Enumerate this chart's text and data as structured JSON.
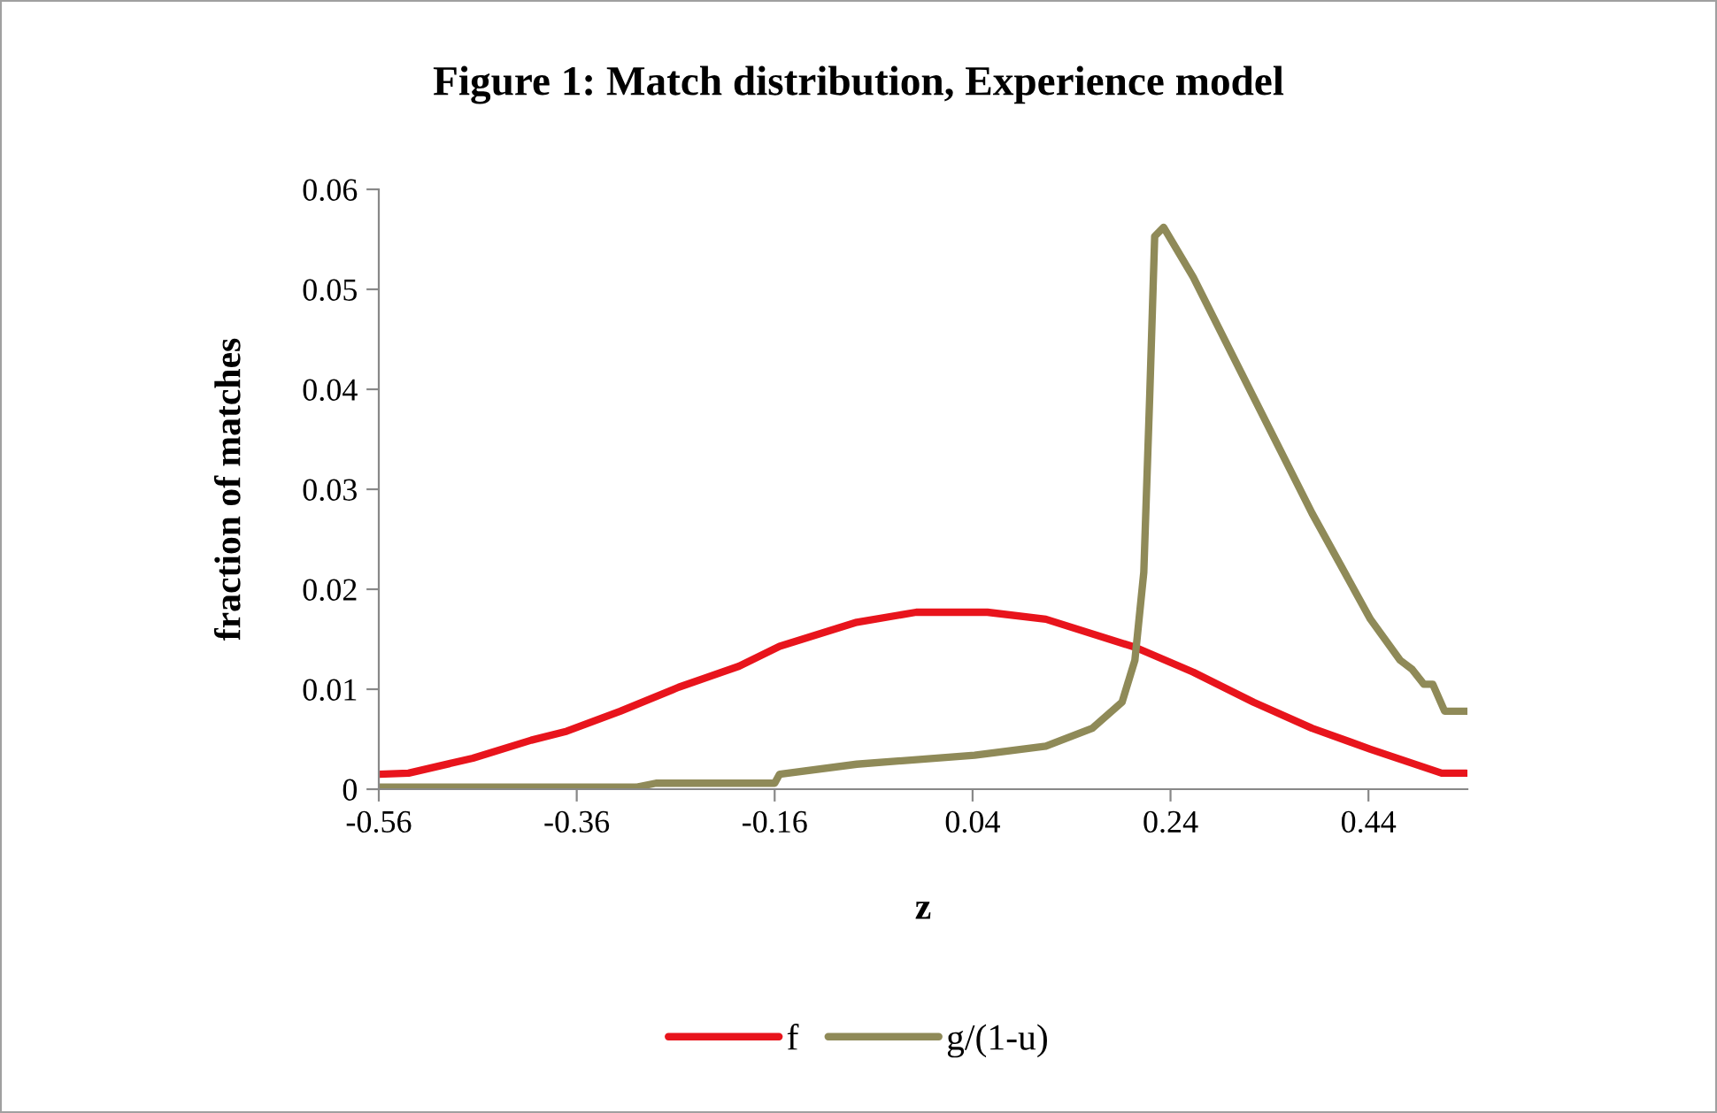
{
  "chart_data": {
    "type": "line",
    "title": "Figure 1: Match distribution, Experience model",
    "xlabel": "z",
    "ylabel": "fraction of matches",
    "series": [
      {
        "name": "f",
        "color": "#e8141c",
        "x": [
          -0.56,
          -0.53,
          -0.465,
          -0.406,
          -0.37,
          -0.316,
          -0.257,
          -0.196,
          -0.155,
          -0.077,
          -0.017,
          0.055,
          0.114,
          0.204,
          0.263,
          0.324,
          0.383,
          0.442,
          0.496,
          0.514,
          0.539
        ],
        "values": [
          0.0015,
          0.0016,
          0.0031,
          0.0049,
          0.0058,
          0.0078,
          0.0102,
          0.0123,
          0.0143,
          0.0167,
          0.0177,
          0.0177,
          0.017,
          0.0142,
          0.0117,
          0.0087,
          0.0061,
          0.004,
          0.0022,
          0.0016,
          0.0016
        ]
      },
      {
        "name": "g/(1-u)",
        "color": "#8f8a58",
        "x": [
          -0.56,
          -0.3,
          -0.28,
          -0.16,
          -0.155,
          -0.077,
          0.042,
          0.114,
          0.161,
          0.191,
          0.204,
          0.213,
          0.219,
          0.224,
          0.233,
          0.263,
          0.323,
          0.383,
          0.442,
          0.472,
          0.484,
          0.496,
          0.505,
          0.517,
          0.539
        ],
        "values": [
          0.0002,
          0.0002,
          0.0006,
          0.0006,
          0.0015,
          0.0025,
          0.0034,
          0.0043,
          0.0061,
          0.0087,
          0.0129,
          0.0217,
          0.0394,
          0.0553,
          0.0562,
          0.0512,
          0.0394,
          0.0276,
          0.017,
          0.0129,
          0.012,
          0.0105,
          0.0105,
          0.0078,
          0.0078
        ]
      }
    ],
    "xlim": [
      -0.56,
      0.54
    ],
    "xticks": [
      -0.56,
      -0.36,
      -0.16,
      0.04,
      0.24,
      0.44
    ],
    "ylim": [
      0,
      0.06
    ],
    "yticks": [
      0,
      0.01,
      0.02,
      0.03,
      0.04,
      0.05,
      0.06
    ],
    "grid": false,
    "legend": "bottom",
    "marker": "none",
    "line_style": "solid"
  }
}
